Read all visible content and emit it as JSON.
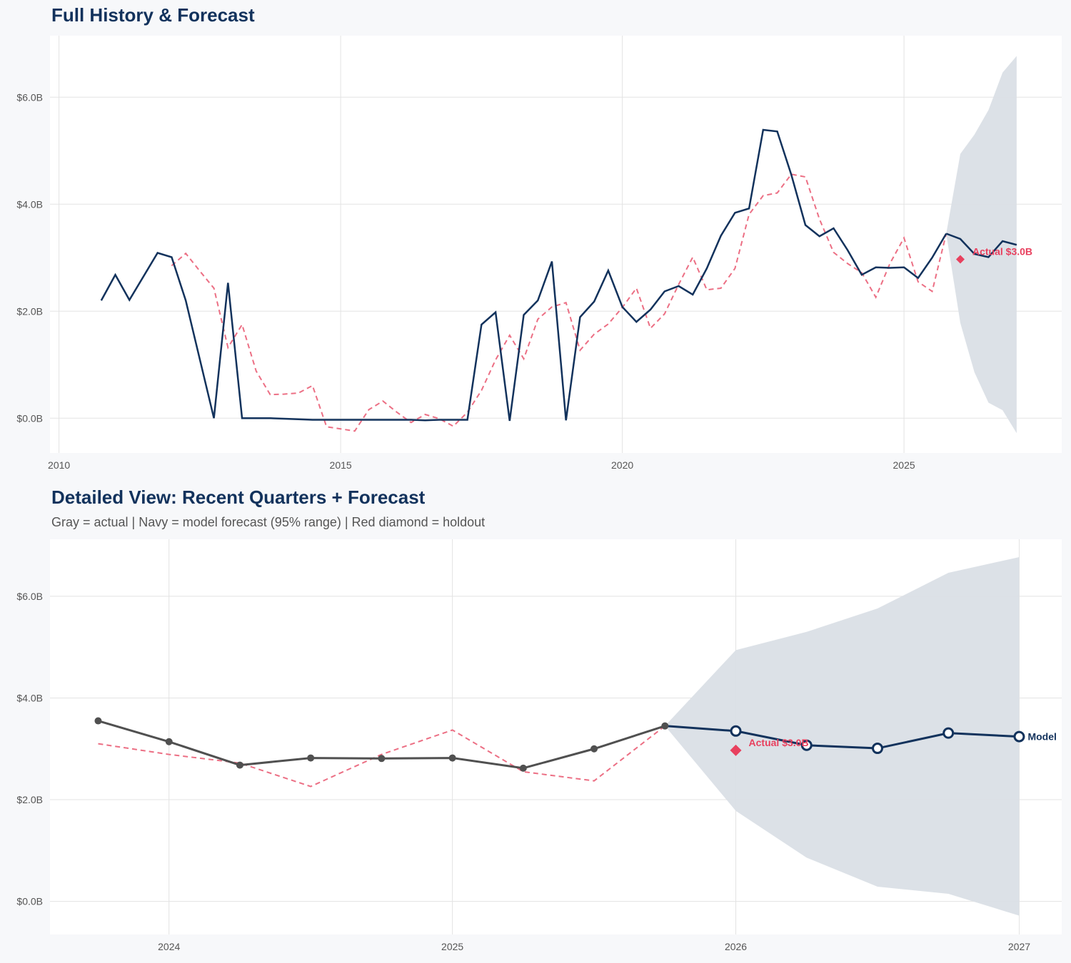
{
  "colors": {
    "actual_navy": "#12325c",
    "actual_gray": "#505050",
    "backtest_red": "#ec6f84",
    "holdout": "#e8405e",
    "band": "#dadfe6",
    "grid": "#e3e3e3"
  },
  "chart_data": [
    {
      "type": "line",
      "title": "Full History & Forecast",
      "x_start": "2010-Q3",
      "x_step": "quarter",
      "xlim": [
        2009.84,
        2027.8
      ],
      "ylim": [
        -0.65,
        7.15
      ],
      "x_ticks": [
        2010,
        2015,
        2020,
        2025
      ],
      "x_tick_labels": [
        "2010",
        "2015",
        "2020",
        "2025"
      ],
      "y_ticks": [
        0,
        2,
        4,
        6
      ],
      "y_tick_labels": [
        "$0.0B",
        "$2.0B",
        "$4.0B",
        "$6.0B"
      ],
      "grid": true,
      "series": [
        {
          "role": "actual",
          "x_from": 2010.75,
          "values": [
            2.2,
            2.68,
            2.21,
            2.65,
            3.09,
            3.01,
            2.2,
            1.1,
            0.0,
            2.53,
            0.0,
            0.0,
            0.0,
            -0.01,
            -0.02,
            -0.03,
            -0.03,
            -0.03,
            -0.03,
            -0.03,
            -0.03,
            -0.03,
            -0.03,
            -0.04,
            -0.03,
            -0.03,
            -0.03,
            1.75,
            1.98,
            -0.05,
            1.93,
            2.2,
            2.93,
            -0.04,
            1.89,
            2.18,
            2.76,
            2.08,
            1.8,
            2.03,
            2.37,
            2.47,
            2.31,
            2.8,
            3.41,
            3.84,
            3.92,
            5.39,
            5.36,
            4.55,
            3.61,
            3.4,
            3.55,
            3.14,
            2.68,
            2.82,
            2.81,
            2.82,
            2.62,
            3.0,
            3.45
          ]
        },
        {
          "role": "backtest",
          "x_from": 2012.0,
          "values": [
            2.85,
            3.08,
            2.75,
            2.43,
            1.32,
            1.75,
            0.88,
            0.44,
            0.45,
            0.47,
            0.61,
            -0.16,
            -0.2,
            -0.24,
            0.16,
            0.32,
            0.11,
            -0.08,
            0.07,
            -0.01,
            -0.15,
            0.11,
            0.52,
            1.09,
            1.55,
            1.11,
            1.85,
            2.08,
            2.16,
            1.27,
            1.57,
            1.76,
            2.07,
            2.43,
            1.68,
            1.95,
            2.5,
            3.01,
            2.4,
            2.43,
            2.8,
            3.81,
            4.16,
            4.21,
            4.56,
            4.51,
            3.72,
            3.1,
            2.89,
            2.72,
            2.26,
            2.89,
            3.37,
            2.55,
            2.37,
            3.45
          ]
        },
        {
          "role": "forecast",
          "x_from": 2025.75,
          "values": [
            3.45,
            3.35,
            3.07,
            3.01,
            3.31,
            3.24
          ],
          "upper": [
            3.45,
            4.94,
            5.3,
            5.76,
            6.46,
            6.77
          ],
          "lower": [
            3.45,
            1.78,
            0.86,
            0.29,
            0.15,
            -0.28
          ]
        }
      ],
      "holdout": {
        "x": 2026.0,
        "y": 2.97,
        "label": "Actual $3.0B"
      }
    },
    {
      "type": "line",
      "title": "Detailed View: Recent Quarters + Forecast",
      "subtitle": "Gray = actual  |  Navy = model forecast (95% range)  |  Red diamond = holdout",
      "xlim": [
        2023.58,
        2027.15
      ],
      "ylim": [
        -0.65,
        7.12
      ],
      "x_ticks": [
        2024,
        2025,
        2026,
        2027
      ],
      "x_tick_labels": [
        "2024",
        "2025",
        "2026",
        "2027"
      ],
      "y_ticks": [
        0,
        2,
        4,
        6
      ],
      "y_tick_labels": [
        "$0.0B",
        "$2.0B",
        "$4.0B",
        "$6.0B"
      ],
      "grid": true,
      "series": [
        {
          "role": "actual",
          "x_from": 2023.75,
          "values": [
            3.55,
            3.14,
            2.68,
            2.82,
            2.81,
            2.82,
            2.62,
            3.0,
            3.45
          ]
        },
        {
          "role": "backtest",
          "x_from": 2023.75,
          "values": [
            3.1,
            2.89,
            2.72,
            2.26,
            2.89,
            3.37,
            2.55,
            2.37,
            3.45
          ]
        },
        {
          "role": "forecast",
          "name": "Model",
          "x_from": 2025.75,
          "values": [
            3.45,
            3.35,
            3.07,
            3.01,
            3.31,
            3.24
          ],
          "upper": [
            3.45,
            4.94,
            5.3,
            5.76,
            6.46,
            6.77
          ],
          "lower": [
            3.45,
            1.78,
            0.86,
            0.29,
            0.15,
            -0.28
          ]
        }
      ],
      "holdout": {
        "x": 2026.0,
        "y": 2.97,
        "label": "Actual $3.0B"
      }
    }
  ]
}
